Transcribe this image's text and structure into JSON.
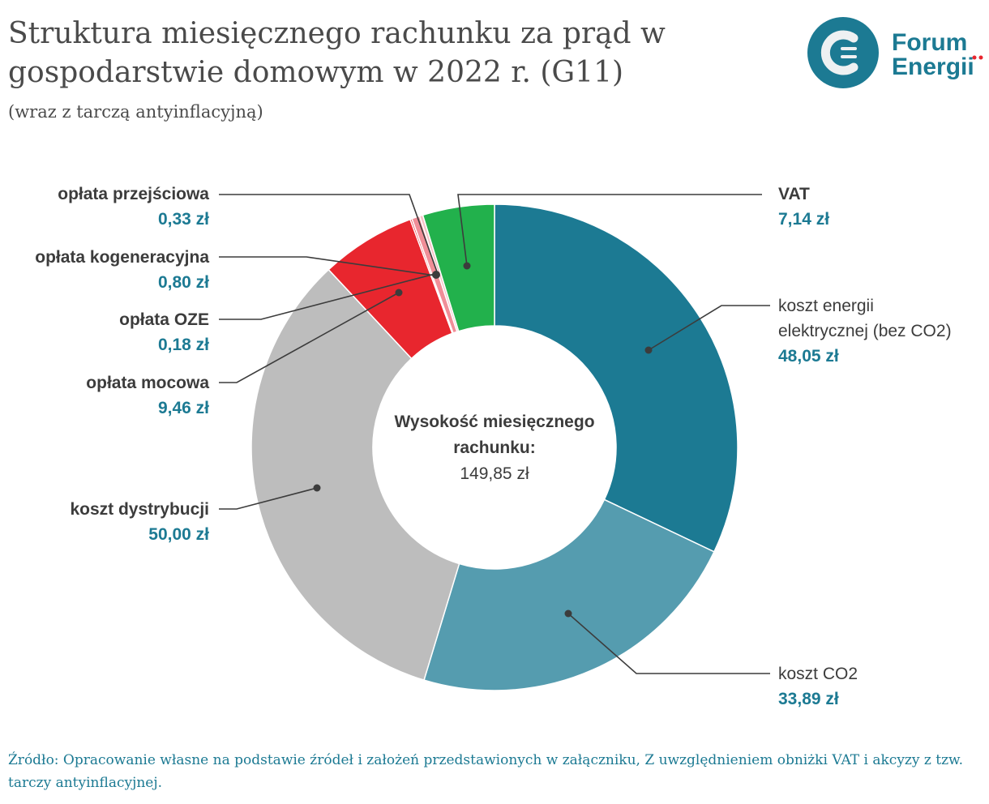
{
  "title": "Struktura miesięcznego rachunku za prąd w gospodarstwie domowym w 2022 r. (G11)",
  "subtitle": "(wraz z tarczą antyinflacyjną)",
  "logo": {
    "text1": "Forum",
    "text2": "Energii",
    "color": "#1c7a93"
  },
  "center": {
    "label": "Wysokość miesięcznego rachunku:",
    "value": "149,85 zł"
  },
  "source": "Źródło: Opracowanie własne na podstawie źródeł i założeń przedstawionych w załączniku, Z uwzględnieniem obniżki VAT i akcyzy z tzw. tarczy antyinflacyjnej.",
  "chart_data": {
    "type": "pie",
    "donut": true,
    "title": "Struktura miesięcznego rachunku za prąd w gospodarstwie domowym w 2022 r. (G11)",
    "unit": "zł",
    "slices": [
      {
        "name": "koszt energii elektrycznej (bez CO2)",
        "value": 48.05,
        "label": "48,05 zł",
        "color": "#1c7a93"
      },
      {
        "name": "koszt CO2",
        "value": 33.89,
        "label": "33,89 zł",
        "color": "#559caf"
      },
      {
        "name": "koszt dystrybucji",
        "value": 50.0,
        "label": "50,00 zł",
        "color": "#bdbdbd"
      },
      {
        "name": "opłata mocowa",
        "value": 9.46,
        "label": "9,46 zł",
        "color": "#e8262e"
      },
      {
        "name": "opłata OZE",
        "value": 0.18,
        "label": "0,18 zł",
        "color": "#e8262e"
      },
      {
        "name": "opłata kogeneracyjna",
        "value": 0.8,
        "label": "0,80 zł",
        "color": "#f08e98"
      },
      {
        "name": "opłata przejściowa",
        "value": 0.33,
        "label": "0,33 zł",
        "color": "#f6c2c7"
      },
      {
        "name": "VAT",
        "value": 7.14,
        "label": "7,14 zł",
        "color": "#22b14c"
      }
    ]
  }
}
